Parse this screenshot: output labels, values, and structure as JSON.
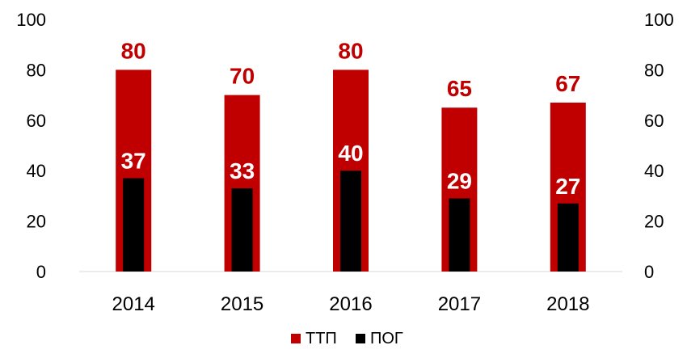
{
  "chart_data": {
    "type": "bar",
    "title": "",
    "xlabel": "",
    "ylabel": "",
    "categories": [
      "2014",
      "2015",
      "2016",
      "2017",
      "2018"
    ],
    "ylim": [
      0,
      100
    ],
    "yticks": [
      0,
      20,
      40,
      60,
      80,
      100
    ],
    "ytick_labels": [
      "0",
      "20",
      "40",
      "60",
      "80",
      "100"
    ],
    "secondary_ytick_labels": [
      "0",
      "20",
      "40",
      "60",
      "80",
      "100"
    ],
    "grid": false,
    "legend_position": "bottom",
    "series": [
      {
        "name": "ТТП",
        "values": [
          80,
          70,
          80,
          65,
          67
        ],
        "value_labels": [
          "80",
          "70",
          "80",
          "65",
          "67"
        ],
        "color": "#c00000",
        "label_color": "#c00000"
      },
      {
        "name": "ПОГ",
        "values": [
          37,
          33,
          40,
          29,
          27
        ],
        "value_labels": [
          "37",
          "33",
          "40",
          "29",
          "27"
        ],
        "color": "#000000",
        "label_color": "#ffffff"
      }
    ]
  }
}
